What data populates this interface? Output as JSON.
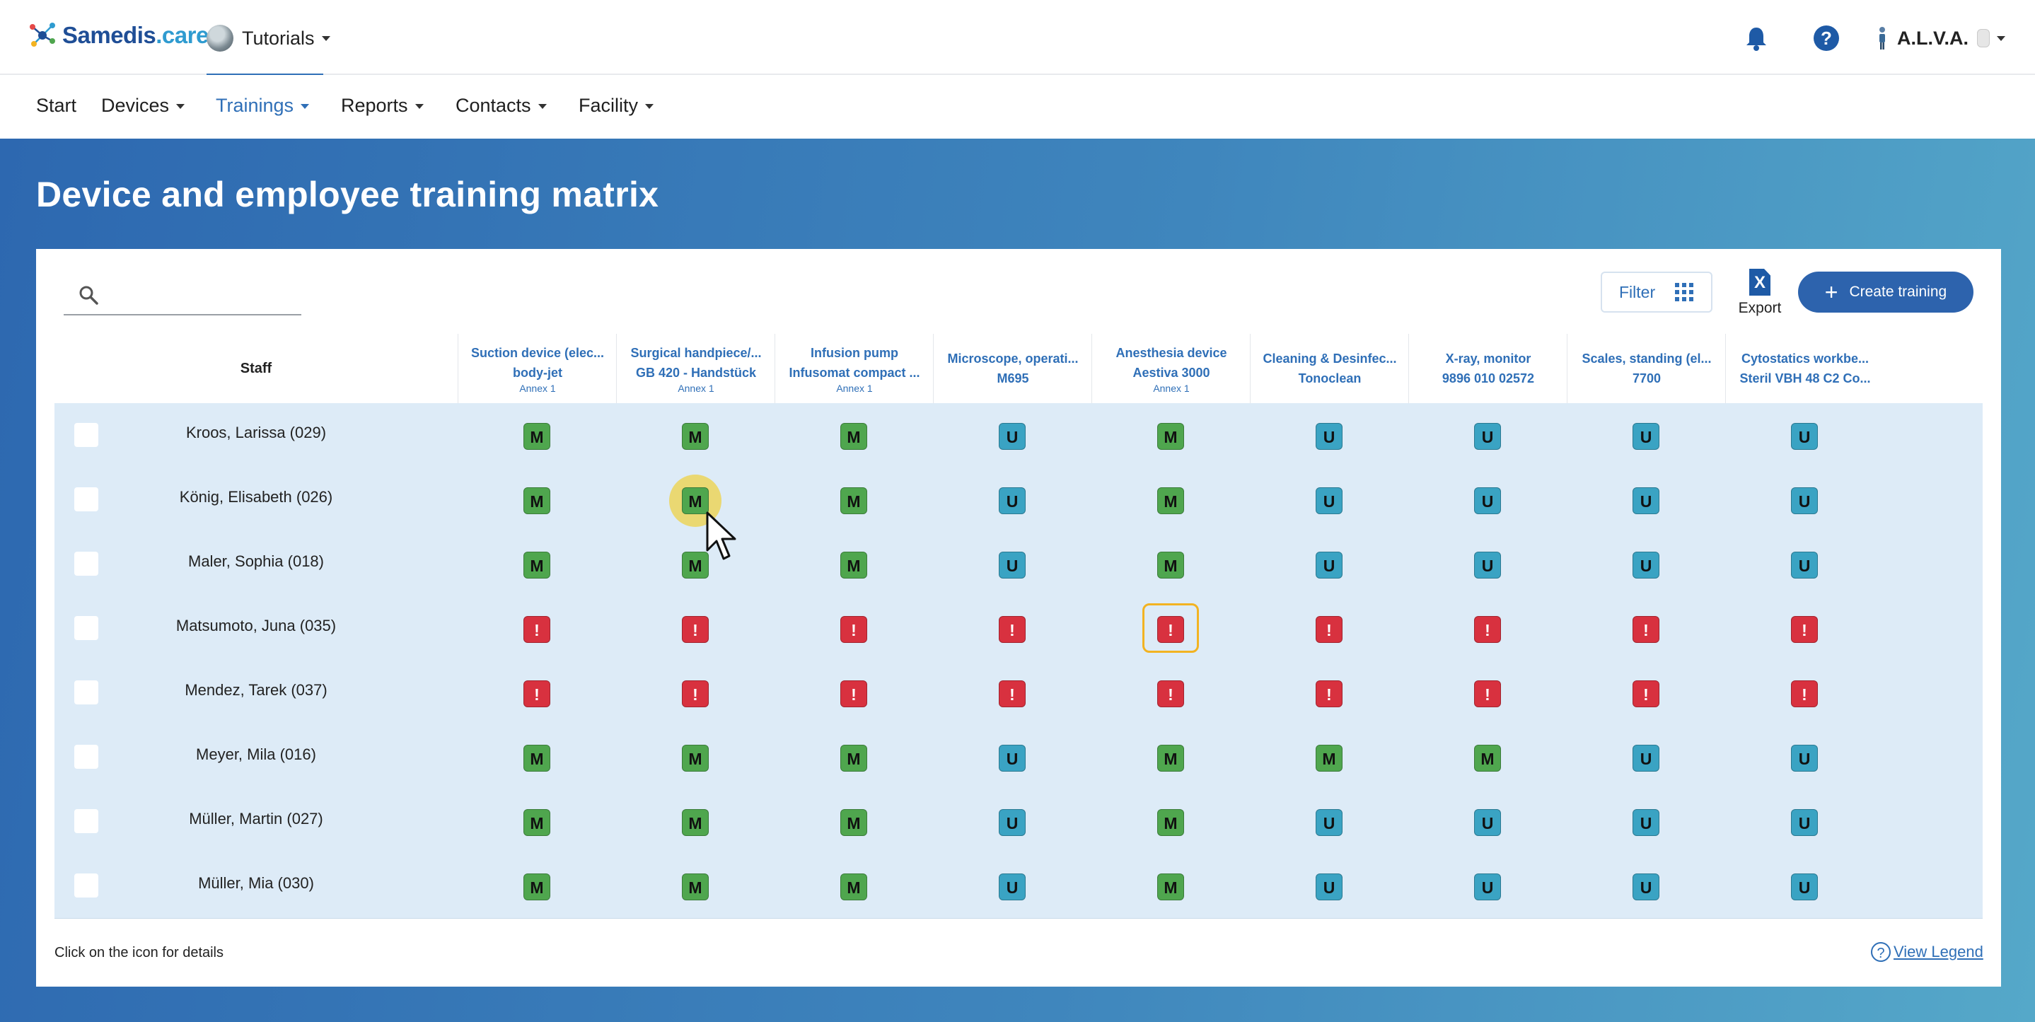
{
  "header": {
    "brand_part1": "Samedis",
    "brand_part2": ".care",
    "tenant": "Tutorials",
    "user_name": "A.L.V.A."
  },
  "nav": {
    "items": [
      {
        "label": "Start"
      },
      {
        "label": "Devices"
      },
      {
        "label": "Trainings"
      },
      {
        "label": "Reports"
      },
      {
        "label": "Contacts"
      },
      {
        "label": "Facility"
      }
    ],
    "active": "Trainings"
  },
  "page": {
    "title": "Device and employee training matrix"
  },
  "toolbar": {
    "search_placeholder": "",
    "filter_label": "Filter",
    "export_label": "Export",
    "export_icon": "X",
    "create_label": "Create training"
  },
  "table": {
    "staff_header": "Staff",
    "columns": [
      {
        "line1": "Suction device (elec...",
        "line2": "body-jet",
        "annex": "Annex 1"
      },
      {
        "line1": "Surgical handpiece/...",
        "line2": "GB 420 - Handstück",
        "annex": "Annex 1"
      },
      {
        "line1": "Infusion pump",
        "line2": "Infusomat compact ...",
        "annex": "Annex 1"
      },
      {
        "line1": "Microscope, operati...",
        "line2": "M695",
        "annex": ""
      },
      {
        "line1": "Anesthesia device",
        "line2": "Aestiva 3000",
        "annex": "Annex 1"
      },
      {
        "line1": "Cleaning & Desinfec...",
        "line2": "Tonoclean",
        "annex": ""
      },
      {
        "line1": "X-ray, monitor",
        "line2": "9896 010 02572",
        "annex": ""
      },
      {
        "line1": "Scales, standing (el...",
        "line2": "7700",
        "annex": ""
      },
      {
        "line1": "Cytostatics workbe...",
        "line2": "Steril VBH 48 C2 Co...",
        "annex": ""
      }
    ],
    "rows": [
      {
        "name": "Kroos, Larissa (029)",
        "cells": [
          "M",
          "M",
          "M",
          "U",
          "M",
          "U",
          "U",
          "U",
          "U"
        ]
      },
      {
        "name": "König, Elisabeth (026)",
        "cells": [
          "M",
          "M",
          "M",
          "U",
          "M",
          "U",
          "U",
          "U",
          "U"
        ]
      },
      {
        "name": "Maler, Sophia (018)",
        "cells": [
          "M",
          "M",
          "M",
          "U",
          "M",
          "U",
          "U",
          "U",
          "U"
        ]
      },
      {
        "name": "Matsumoto, Juna (035)",
        "cells": [
          "!",
          "!",
          "!",
          "!",
          "!",
          "!",
          "!",
          "!",
          "!"
        ]
      },
      {
        "name": "Mendez, Tarek (037)",
        "cells": [
          "!",
          "!",
          "!",
          "!",
          "!",
          "!",
          "!",
          "!",
          "!"
        ]
      },
      {
        "name": "Meyer, Mila (016)",
        "cells": [
          "M",
          "M",
          "M",
          "U",
          "M",
          "M",
          "M",
          "U",
          "U"
        ]
      },
      {
        "name": "Müller, Martin (027)",
        "cells": [
          "M",
          "M",
          "M",
          "U",
          "M",
          "U",
          "U",
          "U",
          "U"
        ]
      },
      {
        "name": "Müller, Mia (030)",
        "cells": [
          "M",
          "M",
          "M",
          "U",
          "M",
          "U",
          "U",
          "U",
          "U"
        ]
      }
    ],
    "hovered_cell": {
      "row": 1,
      "col": 1
    },
    "focused_cell": {
      "row": 3,
      "col": 4
    }
  },
  "footer": {
    "hint": "Click on the icon for details",
    "legend_label": "View Legend",
    "legend_icon": "?"
  },
  "colors": {
    "brand_dark": "#1f4e96",
    "brand_light": "#2f9bd0",
    "accent": "#2f6fb7",
    "badge_m": "#4fa64e",
    "badge_u": "#3aa3c3",
    "badge_missing": "#d8313f",
    "row_bg": "#ddebf7",
    "focus_ring": "#f2b322"
  },
  "icons": [
    "samedis-logo-icon",
    "tenant-avatar",
    "bell-icon",
    "help-icon",
    "user-icon",
    "search-icon",
    "grid-icon",
    "excel-export-icon",
    "plus-icon",
    "question-circle-icon",
    "mouse-pointer-icon"
  ]
}
